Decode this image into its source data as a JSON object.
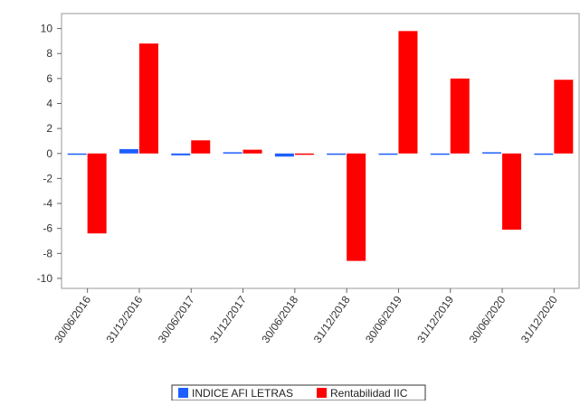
{
  "chart_data": {
    "type": "bar",
    "title": "",
    "xlabel": "",
    "ylabel": "",
    "ylim": [
      -10.8,
      11.2
    ],
    "yticks": [
      10,
      8,
      6,
      4,
      2,
      0,
      -2,
      -4,
      -6,
      -8,
      -10
    ],
    "grid": false,
    "legend_position": "bottom",
    "categories": [
      "30/06/2016",
      "31/12/2016",
      "30/06/2017",
      "31/12/2017",
      "30/06/2018",
      "31/12/2018",
      "30/06/2019",
      "31/12/2019",
      "30/06/2020",
      "31/12/2020"
    ],
    "series": [
      {
        "name": "INDICE AFI LETRAS",
        "color": "#1f5fff",
        "values": [
          -0.05,
          0.35,
          -0.15,
          0.1,
          -0.25,
          -0.05,
          -0.05,
          -0.05,
          0.1,
          -0.05
        ]
      },
      {
        "name": "Rentabilidad IIC",
        "color": "#ff0000",
        "values": [
          -6.4,
          8.8,
          1.05,
          0.3,
          -0.1,
          -8.6,
          9.8,
          6.0,
          -6.1,
          5.9
        ]
      }
    ]
  }
}
